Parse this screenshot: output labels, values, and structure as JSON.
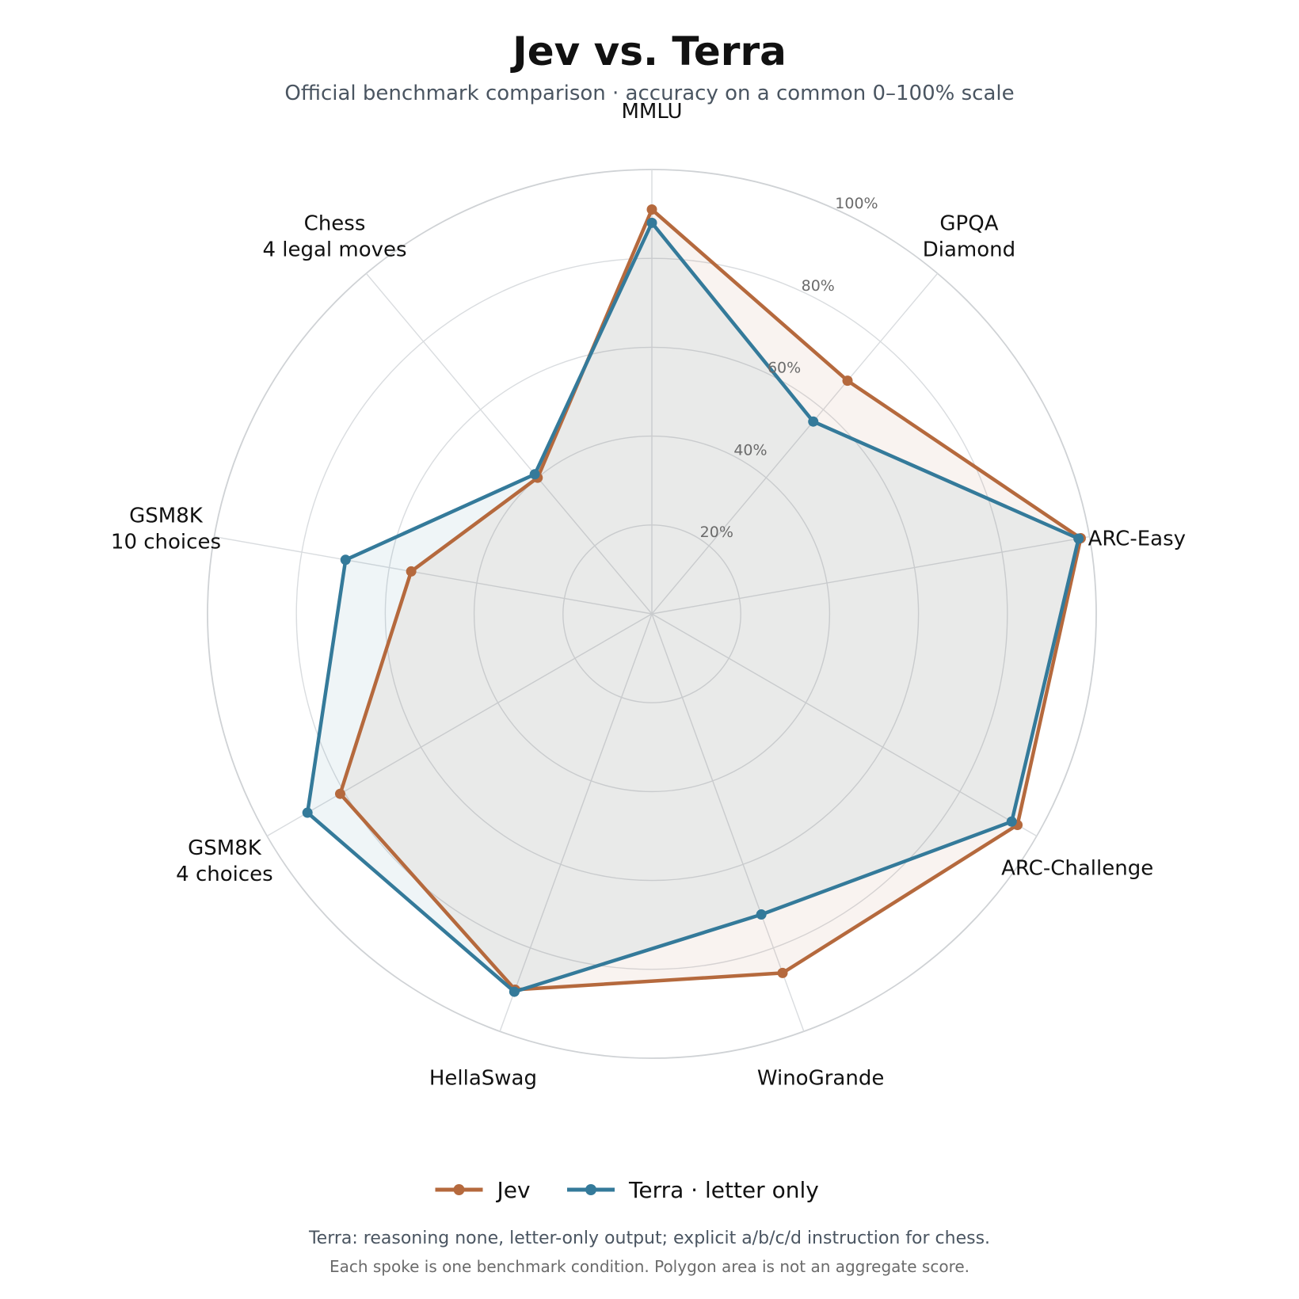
{
  "chart_data": {
    "type": "radar",
    "title": "Jev vs. Terra",
    "subtitle": "Official benchmark comparison · accuracy on a common 0–100% scale",
    "axes": [
      [
        "MMLU"
      ],
      [
        "GPQA",
        "Diamond"
      ],
      [
        "ARC-Easy"
      ],
      [
        "ARC-Challenge"
      ],
      [
        "WinoGrande"
      ],
      [
        "HellaSwag"
      ],
      [
        "GSM8K",
        "4 choices"
      ],
      [
        "GSM8K",
        "10 choices"
      ],
      [
        "Chess",
        "4 legal moves"
      ]
    ],
    "rlim": [
      0,
      100
    ],
    "ticks": [
      20,
      40,
      60,
      80,
      100
    ],
    "tick_labels": [
      "20%",
      "40%",
      "60%",
      "80%",
      "100%"
    ],
    "series": [
      {
        "name": "Jev",
        "color": "#b5693d",
        "values": [
          91.0,
          68.5,
          98.0,
          95.0,
          86.0,
          90.0,
          81.0,
          55.0,
          40.0
        ]
      },
      {
        "name": "Terra · letter only",
        "color": "#347a9a",
        "values": [
          88.0,
          56.5,
          97.5,
          93.5,
          72.0,
          90.5,
          89.5,
          70.0,
          41.0
        ]
      }
    ],
    "grid": true,
    "legend_position": "bottom-center",
    "footnotes": [
      "Terra: reasoning none, letter-only output; explicit a/b/c/d instruction for chess.",
      "Each spoke is one benchmark condition. Polygon area is not an aggregate score."
    ]
  }
}
